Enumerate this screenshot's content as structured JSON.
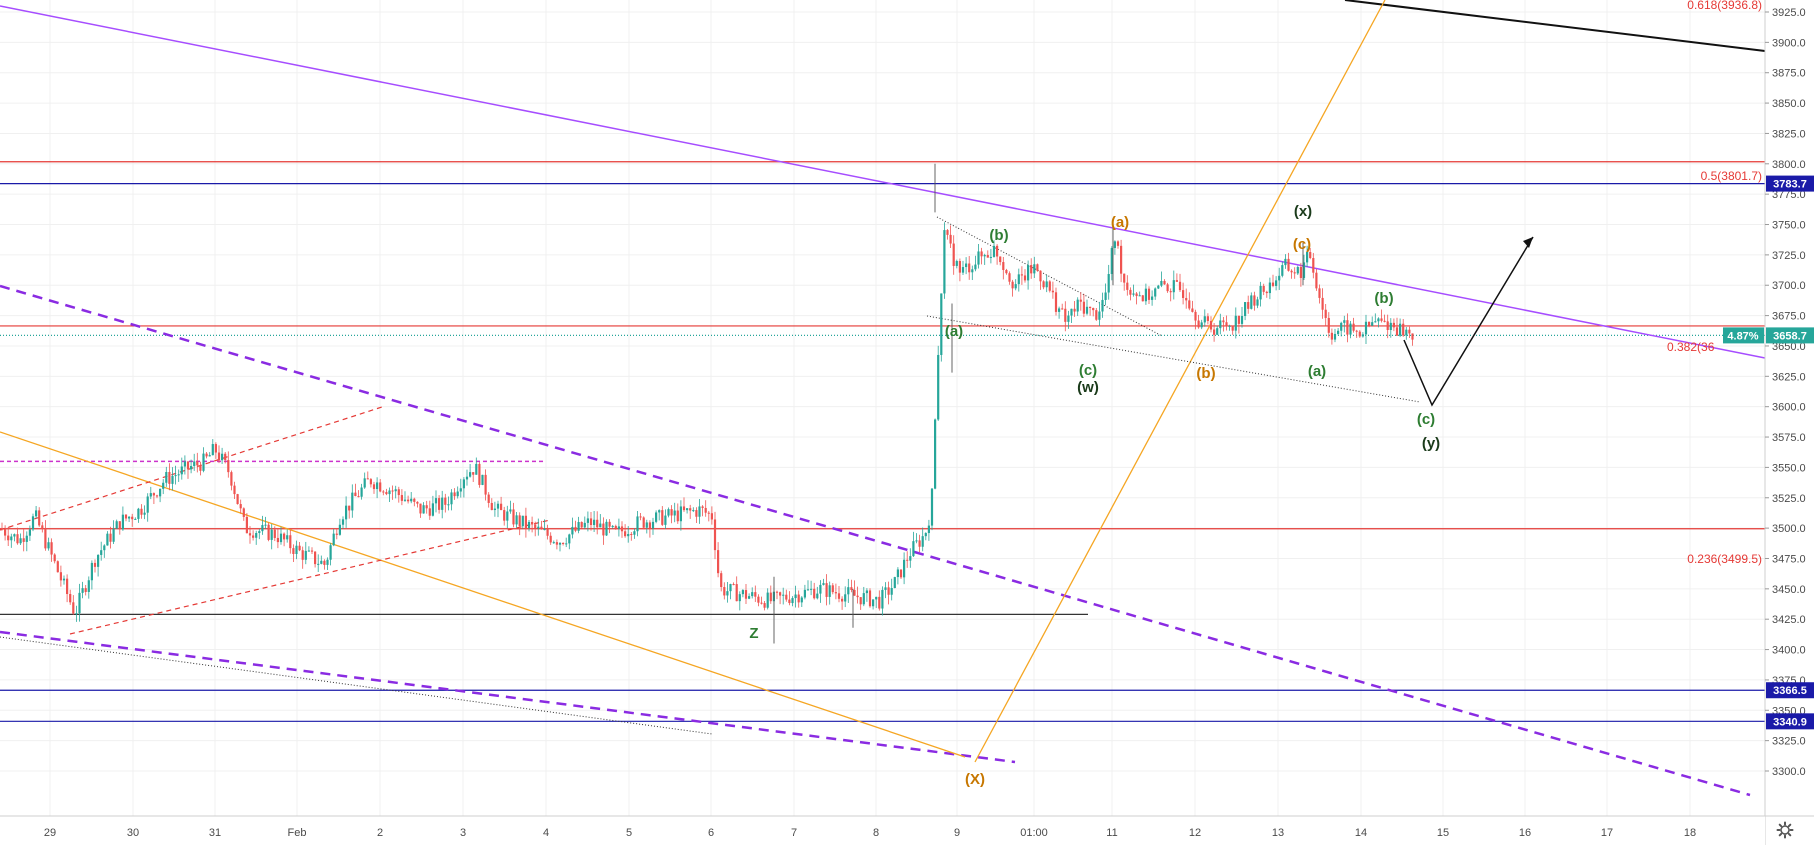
{
  "chart_data": {
    "type": "candlestick",
    "y_axis": {
      "min": 3290,
      "max": 3940,
      "step": 25,
      "tick_labels": [
        "3300.0",
        "3325.0",
        "3350.0",
        "3375.0",
        "3400.0",
        "3425.0",
        "3450.0",
        "3475.0",
        "3500.0",
        "3525.0",
        "3550.0",
        "3575.0",
        "3600.0",
        "3625.0",
        "3650.0",
        "3675.0",
        "3700.0",
        "3725.0",
        "3750.0",
        "3775.0",
        "3800.0",
        "3825.0",
        "3850.0",
        "3875.0",
        "3900.0",
        "3925.0"
      ]
    },
    "x_axis": {
      "tick_labels": [
        "29",
        "30",
        "31",
        "Feb",
        "2",
        "3",
        "4",
        "5",
        "6",
        "7",
        "8",
        "9",
        "01:00",
        "11",
        "12",
        "13",
        "14",
        "15",
        "16",
        "17",
        "18"
      ]
    },
    "price_tags": [
      {
        "label": "3783.7",
        "value": 3783.7,
        "color": "#1a1aa8"
      },
      {
        "label": "3658.7",
        "value": 3658.7,
        "color": "#26a69a"
      },
      {
        "label": "3366.5",
        "value": 3366.5,
        "color": "#1a1aa8"
      },
      {
        "label": "3340.9",
        "value": 3340.9,
        "color": "#1a1aa8"
      }
    ],
    "change_badge": {
      "label": "4.87%",
      "value": 4.87
    },
    "fib_labels": [
      {
        "label": "0.618(3936.8)",
        "value": 3936.8
      },
      {
        "label": "0.5(3801.7)",
        "value": 3801.7
      },
      {
        "label": "0.382(36",
        "value": 3666.5
      },
      {
        "label": "0.236(3499.5)",
        "value": 3499.5
      }
    ],
    "horizontal_lines": [
      {
        "value": 3801.7,
        "color": "#e53935"
      },
      {
        "value": 3783.7,
        "color": "#1a1aa8"
      },
      {
        "value": 3666.5,
        "color": "#e53935"
      },
      {
        "value": 3658.7,
        "color": "#26a69a",
        "style": "dotted"
      },
      {
        "value": 3499.5,
        "color": "#e53935"
      },
      {
        "value": 3429,
        "color": "#333333"
      },
      {
        "value": 3366.5,
        "color": "#1a1aa8"
      },
      {
        "value": 3340.9,
        "color": "#1a1aa8"
      },
      {
        "value": 3555,
        "color": "#cc33cc",
        "style": "dashed"
      }
    ],
    "wave_labels": [
      {
        "label": "Z",
        "color": "#2e7d32"
      },
      {
        "label": "(X)",
        "color": "#c77700"
      },
      {
        "label": "(a)",
        "color": "#2e7d32"
      },
      {
        "label": "(b)",
        "color": "#2e7d32"
      },
      {
        "label": "(c)",
        "color": "#2e7d32"
      },
      {
        "label": "(w)",
        "color": "#1b3b1b"
      },
      {
        "label": "(a)",
        "color": "#c77700"
      },
      {
        "label": "(b)",
        "color": "#c77700"
      },
      {
        "label": "(c)",
        "color": "#c77700"
      },
      {
        "label": "(x)",
        "color": "#1b3b1b"
      },
      {
        "label": "(a)",
        "color": "#2e7d32"
      },
      {
        "label": "(b)",
        "color": "#2e7d32"
      },
      {
        "label": "(c)",
        "color": "#2e7d32"
      },
      {
        "label": "(y)",
        "color": "#1b3b1b"
      }
    ],
    "colors": {
      "up": "#26a69a",
      "down": "#ef5350",
      "trendline_purple": "#a64dff",
      "trendline_orange": "#f5a623",
      "grid": "#f0f0f0"
    }
  },
  "ui": {
    "settings_icon": "gear-icon"
  }
}
